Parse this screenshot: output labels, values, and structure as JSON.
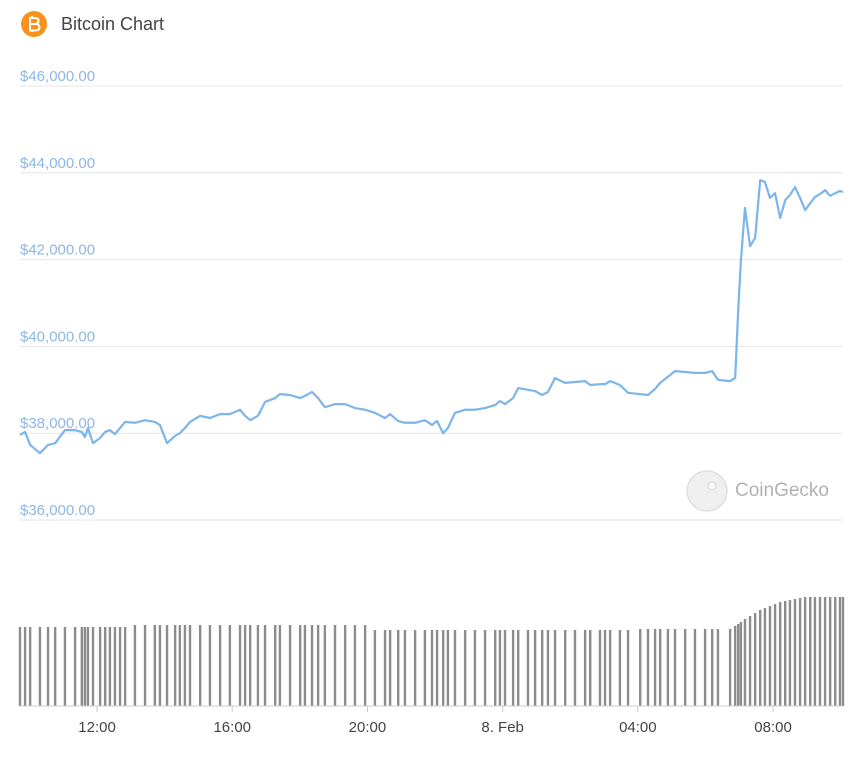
{
  "chart_data": {
    "type": "line",
    "title": "Bitcoin Chart",
    "watermark": "CoinGecko",
    "x": [
      9.72,
      9.87,
      10.02,
      10.31,
      10.55,
      10.76,
      11.05,
      11.35,
      11.55,
      11.64,
      11.73,
      11.88,
      12.09,
      12.24,
      12.38,
      12.53,
      12.68,
      12.83,
      13.12,
      13.42,
      13.71,
      13.86,
      14.07,
      14.31,
      14.45,
      14.6,
      14.75,
      15.05,
      15.34,
      15.64,
      15.93,
      16.23,
      16.38,
      16.53,
      16.76,
      16.97,
      17.27,
      17.41,
      17.71,
      18.01,
      18.15,
      18.36,
      18.54,
      18.74,
      19.04,
      19.34,
      19.63,
      19.93,
      20.22,
      20.52,
      20.67,
      20.91,
      21.11,
      21.41,
      21.7,
      21.91,
      22.06,
      22.24,
      22.38,
      22.59,
      22.89,
      23.18,
      23.48,
      23.78,
      23.92,
      24.07,
      24.31,
      24.46,
      24.75,
      24.96,
      25.17,
      25.34,
      25.55,
      25.85,
      26.14,
      26.44,
      26.59,
      26.88,
      27.03,
      27.18,
      27.47,
      27.71,
      28.07,
      28.3,
      28.51,
      28.66,
      28.89,
      29.1,
      29.4,
      29.69,
      29.99,
      30.2,
      30.37,
      30.73,
      30.88,
      30.97,
      31.05,
      31.17,
      31.32,
      31.47,
      31.62,
      31.76,
      31.91,
      32.06,
      32.21,
      32.36,
      32.5,
      32.65,
      32.8,
      32.95,
      33.1,
      33.24,
      33.39,
      33.54,
      33.69,
      33.84,
      33.98,
      34.07
    ],
    "series": [
      {
        "color": "#7cb5ec",
        "values": [
          37960,
          38030,
          37730,
          37540,
          37730,
          37770,
          38070,
          38070,
          38030,
          37910,
          38120,
          37770,
          37890,
          38030,
          38070,
          37980,
          38120,
          38260,
          38240,
          38300,
          38260,
          38190,
          37770,
          37940,
          38000,
          38120,
          38260,
          38400,
          38350,
          38440,
          38440,
          38540,
          38400,
          38300,
          38400,
          38720,
          38810,
          38900,
          38880,
          38810,
          38860,
          38950,
          38810,
          38600,
          38670,
          38670,
          38580,
          38540,
          38470,
          38350,
          38440,
          38280,
          38240,
          38240,
          38300,
          38190,
          38280,
          38000,
          38120,
          38470,
          38540,
          38540,
          38580,
          38650,
          38740,
          38670,
          38810,
          39040,
          39000,
          38970,
          38880,
          38950,
          39270,
          39160,
          39180,
          39200,
          39110,
          39130,
          39130,
          39200,
          39110,
          38930,
          38900,
          38880,
          39020,
          39160,
          39300,
          39430,
          39410,
          39390,
          39390,
          39430,
          39230,
          39200,
          39270,
          40840,
          41990,
          43190,
          42310,
          42500,
          43830,
          43790,
          43420,
          43530,
          42960,
          43370,
          43490,
          43670,
          43420,
          43140,
          43300,
          43440,
          43510,
          43600,
          43470,
          43530,
          43580,
          43560
        ]
      }
    ],
    "volume": {
      "color": "#8c8c8c",
      "values": [
        79,
        79,
        79,
        79,
        79,
        79,
        79,
        79,
        79,
        79,
        79,
        79,
        79,
        79,
        79,
        79,
        79,
        79,
        81,
        81,
        81,
        81,
        81,
        81,
        81,
        81,
        81,
        81,
        81,
        81,
        81,
        81,
        81,
        81,
        81,
        81,
        81,
        81,
        81,
        81,
        81,
        81,
        81,
        81,
        81,
        81,
        81,
        81,
        76,
        76,
        76,
        76,
        76,
        76,
        76,
        76,
        76,
        76,
        76,
        76,
        76,
        76,
        76,
        76,
        76,
        76,
        76,
        76,
        76,
        76,
        76,
        76,
        76,
        76,
        76,
        76,
        76,
        76,
        76,
        76,
        76,
        76,
        77,
        77,
        77,
        77,
        77,
        77,
        77,
        77,
        77,
        77,
        77,
        77,
        80,
        82,
        84,
        87,
        90,
        93,
        96,
        98,
        100,
        102,
        104,
        105,
        106,
        107,
        108,
        109,
        109,
        109,
        109,
        109,
        109,
        109,
        109,
        109
      ]
    },
    "xlim": [
      9.72,
      34.07
    ],
    "xticks": [
      {
        "value": 12,
        "label": "12:00"
      },
      {
        "value": 16,
        "label": "16:00"
      },
      {
        "value": 20,
        "label": "20:00"
      },
      {
        "value": 24,
        "label": "8. Feb"
      },
      {
        "value": 28,
        "label": "04:00"
      },
      {
        "value": 32,
        "label": "08:00"
      }
    ],
    "ylim": [
      36000,
      46000
    ],
    "yticks": [
      {
        "value": 36000,
        "label": "$36,000.00"
      },
      {
        "value": 38000,
        "label": "$38,000.00"
      },
      {
        "value": 40000,
        "label": "$40,000.00"
      },
      {
        "value": 42000,
        "label": "$42,000.00"
      },
      {
        "value": 44000,
        "label": "$44,000.00"
      },
      {
        "value": 46000,
        "label": "$46,000.00"
      }
    ],
    "grid": true
  }
}
